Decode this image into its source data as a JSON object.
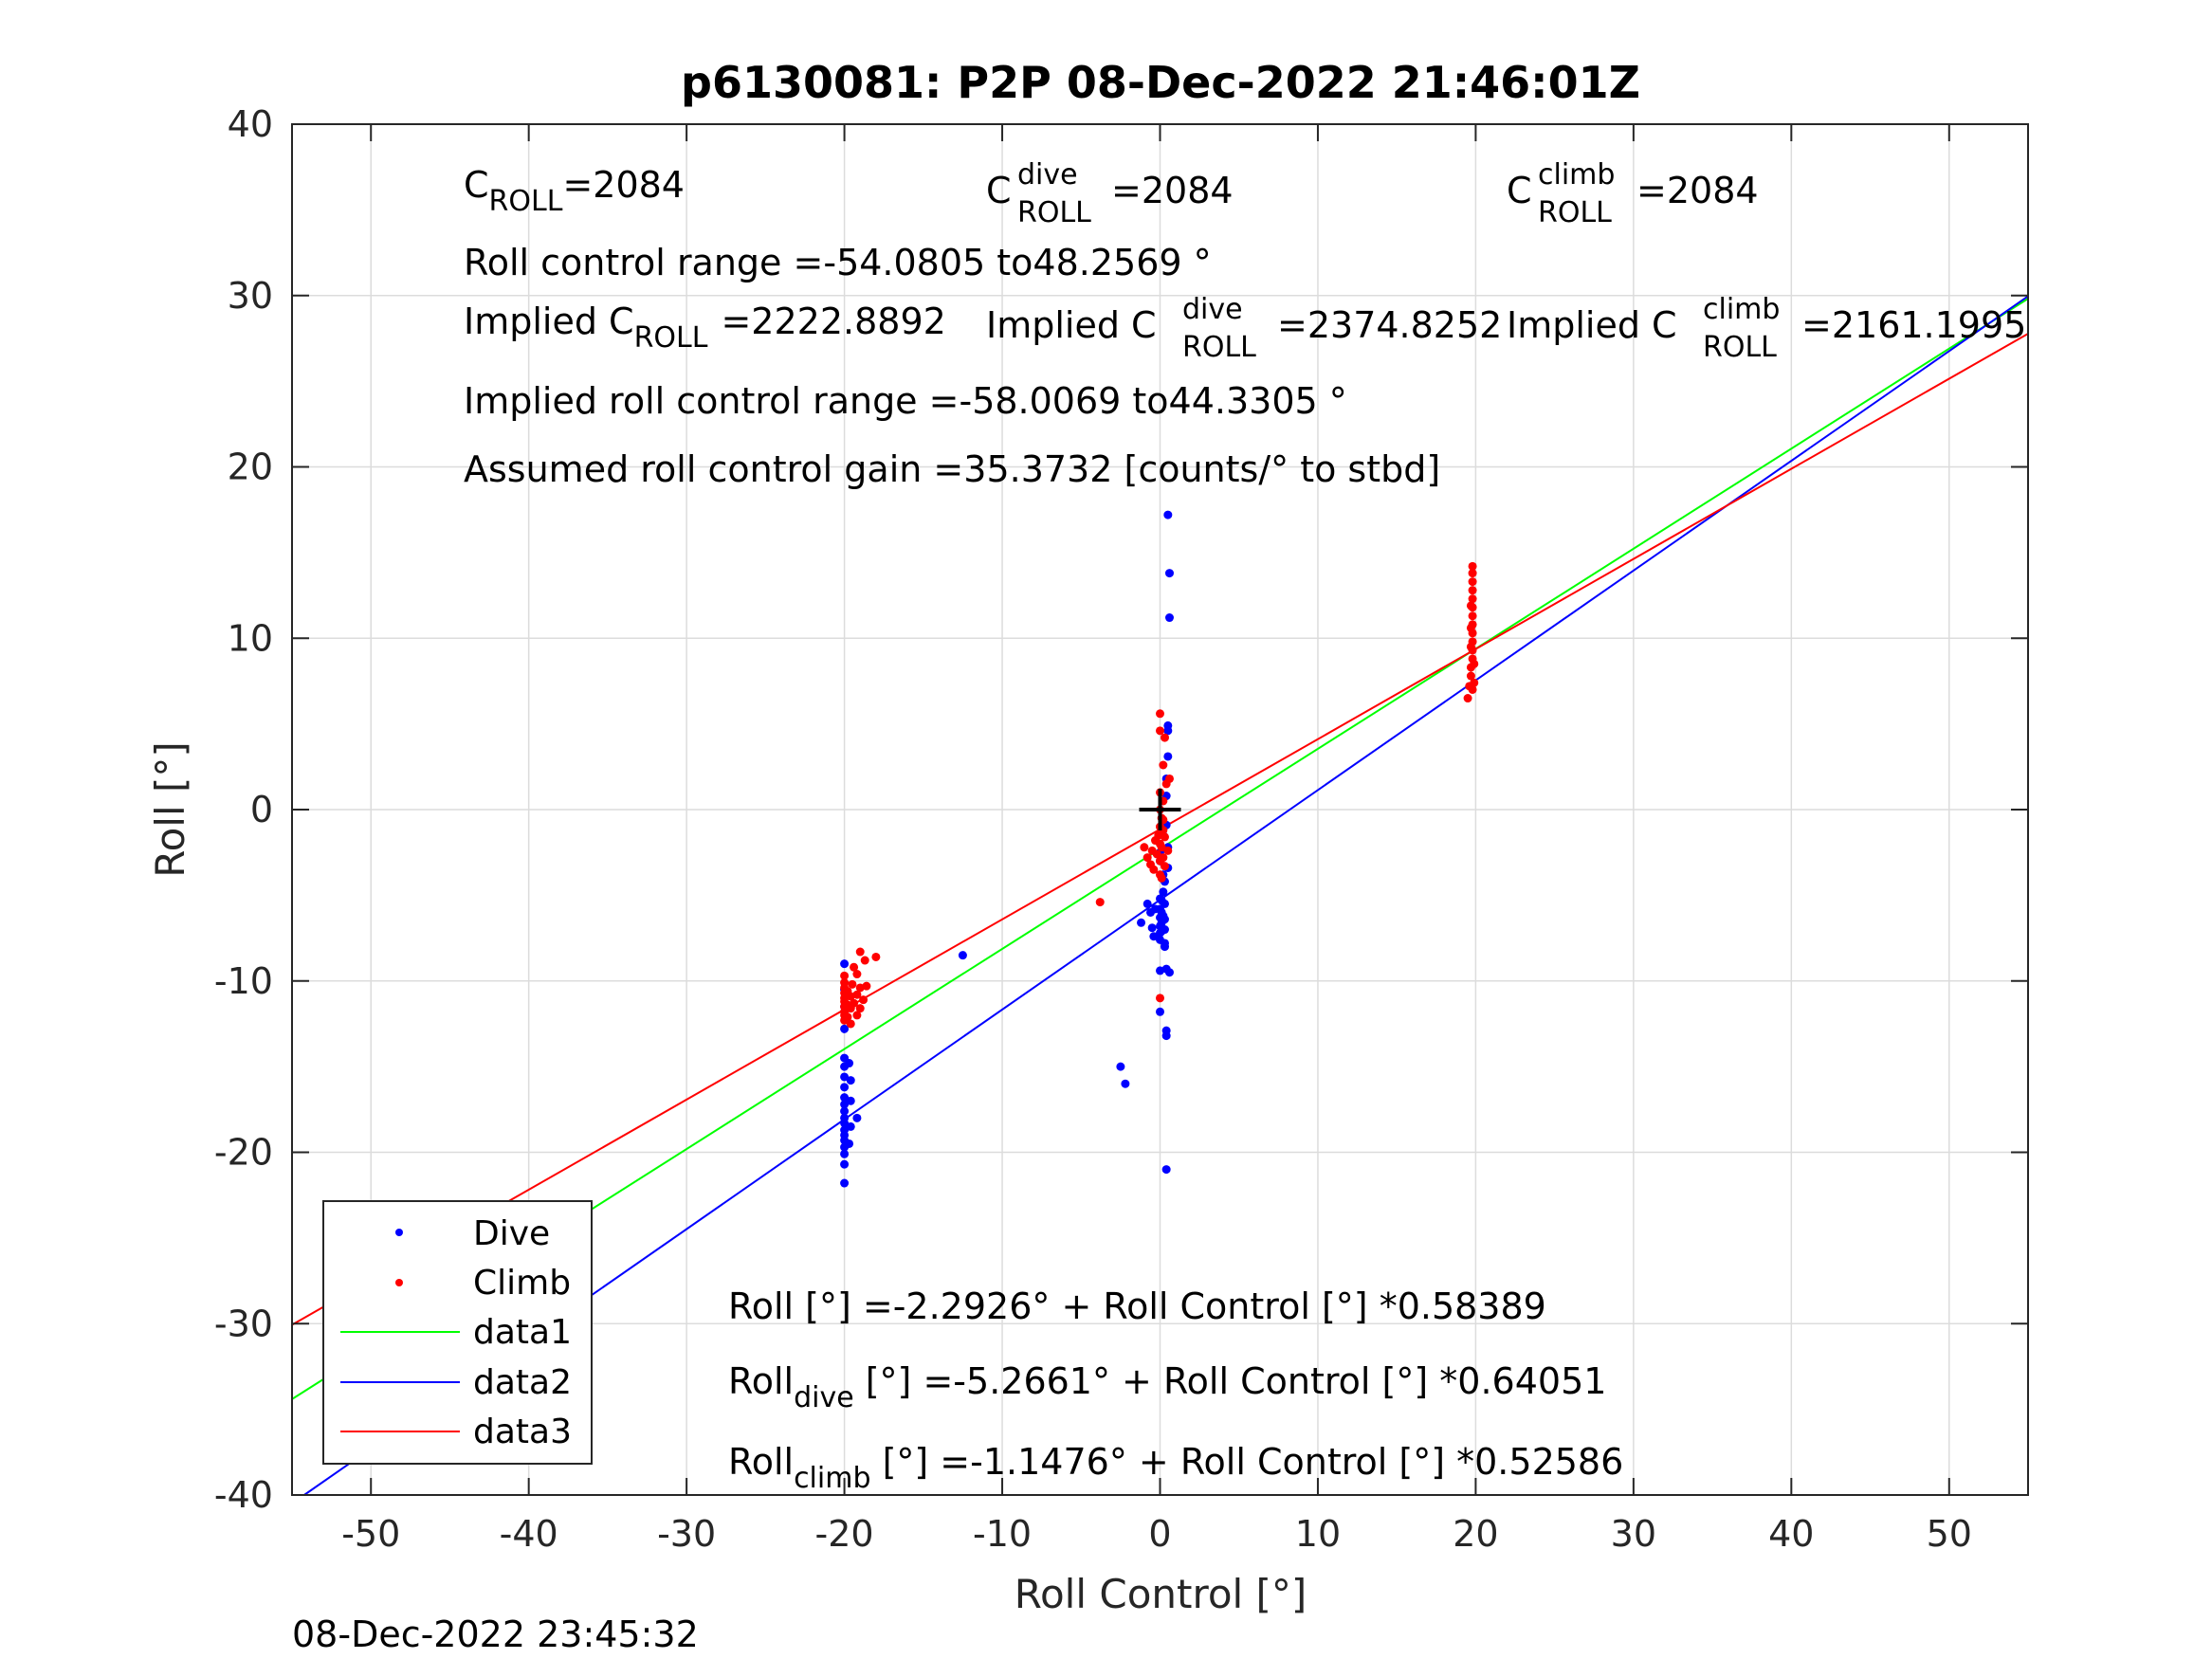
{
  "figure": {
    "footer_timestamp": "08-Dec-2022 23:45:32"
  },
  "annotations": {
    "c_roll": {
      "base": "C",
      "sub": "ROLL",
      "value": "=2084"
    },
    "c_roll_dive": {
      "base": "C",
      "sup": "dive",
      "sub": "ROLL",
      "value": "=2084"
    },
    "c_roll_climb": {
      "base": "C",
      "sup": "climb",
      "sub": "ROLL",
      "value": "=2084"
    },
    "roll_control_range": "Roll control range =-54.0805 to48.2569 °",
    "implied_c_roll": {
      "prefix": "Implied C",
      "sub": "ROLL",
      "value": "=2222.8892"
    },
    "implied_c_roll_dive": {
      "prefix": "Implied C",
      "sup": "dive",
      "sub": "ROLL",
      "value": "=2374.8252"
    },
    "implied_c_roll_climb": {
      "prefix": "Implied C",
      "sup": "climb",
      "sub": "ROLL",
      "value": "=2161.1995"
    },
    "implied_range": "Implied roll control range =-58.0069 to44.3305 °",
    "assumed_gain": "Assumed roll control gain =35.3732 [counts/° to stbd]",
    "fit_all": "Roll [°] =-2.2926° + Roll Control [°] *0.58389",
    "fit_dive": {
      "base": "Roll",
      "sub": "dive",
      "rest": " [°] =-5.2661° + Roll Control [°] *0.64051"
    },
    "fit_climb": {
      "base": "Roll",
      "sub": "climb",
      "rest": " [°] =-1.1476° + Roll Control [°] *0.52586"
    }
  },
  "chart_data": {
    "type": "scatter",
    "title": "p6130081: P2P 08-Dec-2022 21:46:01Z",
    "xlabel": "Roll Control [°]",
    "ylabel": "Roll [°]",
    "xlim": [
      -55,
      55
    ],
    "ylim": [
      -40,
      40
    ],
    "xticks": [
      -50,
      -40,
      -30,
      -20,
      -10,
      0,
      10,
      20,
      30,
      40,
      50
    ],
    "yticks": [
      -40,
      -30,
      -20,
      -10,
      0,
      10,
      20,
      30,
      40
    ],
    "grid": true,
    "legend_position": "bottom-left",
    "series": [
      {
        "name": "Dive",
        "kind": "points",
        "color": "#0000ff",
        "points": [
          [
            -20,
            -9
          ],
          [
            -20,
            -10.5
          ],
          [
            -20,
            -11.5
          ],
          [
            -20,
            -12.8
          ],
          [
            -20,
            -14.5
          ],
          [
            -20,
            -15
          ],
          [
            -20,
            -15.6
          ],
          [
            -20,
            -16.2
          ],
          [
            -20,
            -16.8
          ],
          [
            -20,
            -17.2
          ],
          [
            -20,
            -17.6
          ],
          [
            -20,
            -18
          ],
          [
            -20,
            -18.3
          ],
          [
            -20,
            -18.7
          ],
          [
            -20,
            -19
          ],
          [
            -20,
            -19.3
          ],
          [
            -20,
            -19.7
          ],
          [
            -20,
            -20.1
          ],
          [
            -20,
            -20.7
          ],
          [
            -20,
            -21.8
          ],
          [
            -19.6,
            -17
          ],
          [
            -19.6,
            -18.5
          ],
          [
            -19.6,
            -15.8
          ],
          [
            -19.2,
            -18
          ],
          [
            -19.7,
            -19.5
          ],
          [
            -19.7,
            -14.8
          ],
          [
            -12.5,
            -8.5
          ],
          [
            -2.5,
            -15
          ],
          [
            -2.2,
            -16
          ],
          [
            -1.2,
            -6.6
          ],
          [
            -0.8,
            -5.5
          ],
          [
            -0.6,
            -6
          ],
          [
            -0.5,
            -6.9
          ],
          [
            -0.4,
            -7.4
          ],
          [
            -0.3,
            -5.8
          ],
          [
            0,
            -5.2
          ],
          [
            0,
            -5.8
          ],
          [
            0,
            -6.3
          ],
          [
            0,
            -6.8
          ],
          [
            0,
            -7.2
          ],
          [
            0,
            -7.6
          ],
          [
            0,
            -3
          ],
          [
            0,
            -2.5
          ],
          [
            0,
            -9.4
          ],
          [
            0,
            -11.8
          ],
          [
            0.1,
            -6
          ],
          [
            0.1,
            -6.6
          ],
          [
            0.1,
            -7.1
          ],
          [
            0.1,
            -5.3
          ],
          [
            0.2,
            -4.8
          ],
          [
            0.2,
            -3.8
          ],
          [
            0.2,
            -6.2
          ],
          [
            0.3,
            -5.5
          ],
          [
            0.3,
            -6.4
          ],
          [
            0.3,
            -7
          ],
          [
            0.3,
            -7.8
          ],
          [
            0.3,
            -8
          ],
          [
            0.4,
            -9.3
          ],
          [
            0.4,
            -12.9
          ],
          [
            0.4,
            -13.2
          ],
          [
            0.4,
            -21
          ],
          [
            0.4,
            -0.9
          ],
          [
            0.4,
            0.8
          ],
          [
            0.4,
            1.8
          ],
          [
            0.5,
            3.1
          ],
          [
            0.5,
            4.9
          ],
          [
            0.5,
            4.6
          ],
          [
            0.6,
            -9.5
          ],
          [
            0.6,
            11.2
          ],
          [
            0.6,
            13.8
          ],
          [
            0.5,
            17.2
          ],
          [
            0.2,
            -1.5
          ],
          [
            0.5,
            -3.4
          ],
          [
            0.5,
            -2.2
          ],
          [
            0.3,
            -4.2
          ]
        ]
      },
      {
        "name": "Climb",
        "kind": "points",
        "color": "#ff0000",
        "points": [
          [
            -20,
            -12.3
          ],
          [
            -20,
            -12
          ],
          [
            -20,
            -11.8
          ],
          [
            -20,
            -11.5
          ],
          [
            -20,
            -11.2
          ],
          [
            -20,
            -11
          ],
          [
            -20,
            -10.7
          ],
          [
            -20,
            -10.4
          ],
          [
            -20,
            -10.1
          ],
          [
            -20,
            -9.7
          ],
          [
            -19.8,
            -12.1
          ],
          [
            -19.8,
            -11.4
          ],
          [
            -19.8,
            -10.6
          ],
          [
            -19.6,
            -12.5
          ],
          [
            -19.6,
            -11.6
          ],
          [
            -19.6,
            -10.9
          ],
          [
            -19.5,
            -10.2
          ],
          [
            -19.4,
            -11.3
          ],
          [
            -19.2,
            -12
          ],
          [
            -19.2,
            -10.8
          ],
          [
            -19,
            -11.6
          ],
          [
            -19,
            -10.4
          ],
          [
            -18.8,
            -11.1
          ],
          [
            -18.6,
            -10.3
          ],
          [
            -19.4,
            -9.2
          ],
          [
            -19,
            -8.3
          ],
          [
            -18.7,
            -8.8
          ],
          [
            -18,
            -8.6
          ],
          [
            -19.2,
            -9.6
          ],
          [
            -3.8,
            -5.4
          ],
          [
            -1,
            -2.2
          ],
          [
            -0.8,
            -2.8
          ],
          [
            -0.6,
            -3.2
          ],
          [
            -0.5,
            -2.4
          ],
          [
            -0.4,
            -3.5
          ],
          [
            -0.3,
            -1.8
          ],
          [
            -0.2,
            -2.6
          ],
          [
            -0.1,
            -1.5
          ],
          [
            0,
            -2
          ],
          [
            0,
            -3
          ],
          [
            0,
            -3.8
          ],
          [
            0,
            -1
          ],
          [
            0,
            0
          ],
          [
            0,
            1
          ],
          [
            0,
            4.6
          ],
          [
            0,
            5.6
          ],
          [
            0,
            -11
          ],
          [
            0.1,
            -2.2
          ],
          [
            0.1,
            -0.5
          ],
          [
            0.1,
            -4
          ],
          [
            0.2,
            -1.2
          ],
          [
            0.2,
            -2.8
          ],
          [
            0.2,
            0.5
          ],
          [
            0.3,
            -1.6
          ],
          [
            0.3,
            -3.3
          ],
          [
            0.3,
            4.2
          ],
          [
            0.2,
            2.6
          ],
          [
            0.4,
            1.5
          ],
          [
            0.5,
            -2.4
          ],
          [
            0.6,
            1.8
          ],
          [
            0.2,
            -0.6
          ],
          [
            19.5,
            6.5
          ],
          [
            19.6,
            7.2
          ],
          [
            19.7,
            7.8
          ],
          [
            19.7,
            8.3
          ],
          [
            19.8,
            8.8
          ],
          [
            19.8,
            9.3
          ],
          [
            19.8,
            9.8
          ],
          [
            19.8,
            10.3
          ],
          [
            19.8,
            10.8
          ],
          [
            19.8,
            11.3
          ],
          [
            19.8,
            11.8
          ],
          [
            19.8,
            12.3
          ],
          [
            19.8,
            12.8
          ],
          [
            19.8,
            13.3
          ],
          [
            19.8,
            13.8
          ],
          [
            19.8,
            14.2
          ],
          [
            19.7,
            10.6
          ],
          [
            19.7,
            11.9
          ],
          [
            19.7,
            9.5
          ],
          [
            19.9,
            8.5
          ],
          [
            19.9,
            7.4
          ],
          [
            19.8,
            7.0
          ]
        ]
      },
      {
        "name": "data1",
        "kind": "line",
        "color": "#00ff00",
        "intercept": -2.2926,
        "slope": 0.58389
      },
      {
        "name": "data2",
        "kind": "line",
        "color": "#0000ff",
        "intercept": -5.2661,
        "slope": 0.64051
      },
      {
        "name": "data3",
        "kind": "line",
        "color": "#ff0000",
        "intercept": -1.1476,
        "slope": 0.52586
      }
    ],
    "marker": {
      "x": 0,
      "y": 0,
      "symbol": "+",
      "color": "#000000"
    }
  }
}
